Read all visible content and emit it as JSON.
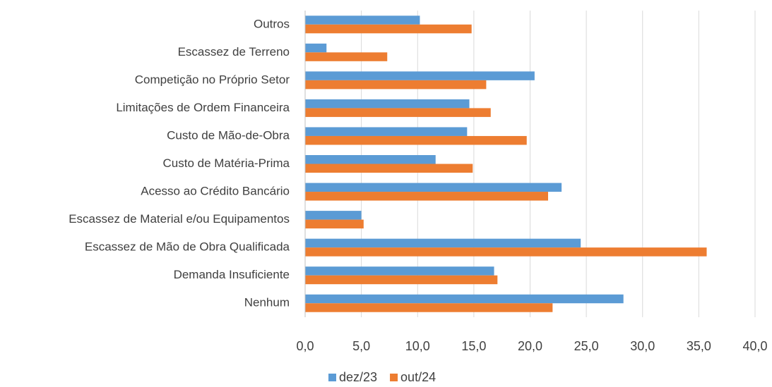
{
  "chart_data": {
    "type": "hbar",
    "categories": [
      "Outros",
      "Escassez de Terreno",
      "Competição no Próprio Setor",
      "Limitações de Ordem Financeira",
      "Custo de Mão-de-Obra",
      "Custo de Matéria-Prima",
      "Acesso ao Crédito Bancário",
      "Escassez de Material e/ou Equipamentos",
      "Escassez de Mão de Obra Qualificada",
      "Demanda Insuficiente",
      "Nenhum"
    ],
    "series": [
      {
        "name": "dez/23",
        "color": "#5b9bd5",
        "values": [
          10.2,
          1.9,
          20.4,
          14.6,
          14.4,
          11.6,
          22.8,
          5.0,
          24.5,
          16.8,
          28.3
        ]
      },
      {
        "name": "out/24",
        "color": "#ed7d31",
        "values": [
          14.8,
          7.3,
          16.1,
          16.5,
          19.7,
          14.9,
          21.6,
          5.2,
          35.7,
          17.1,
          22.0
        ]
      }
    ],
    "xlim": [
      0,
      40
    ],
    "xticks": [
      {
        "value": 0,
        "label": "0,0"
      },
      {
        "value": 5,
        "label": "5,0"
      },
      {
        "value": 10,
        "label": "10,0"
      },
      {
        "value": 15,
        "label": "15,0"
      },
      {
        "value": 20,
        "label": "20,0"
      },
      {
        "value": 25,
        "label": "25,0"
      },
      {
        "value": 30,
        "label": "30,0"
      },
      {
        "value": 35,
        "label": "35,0"
      },
      {
        "value": 40,
        "label": "40,0"
      }
    ],
    "grid": true,
    "legend": "bottom"
  }
}
